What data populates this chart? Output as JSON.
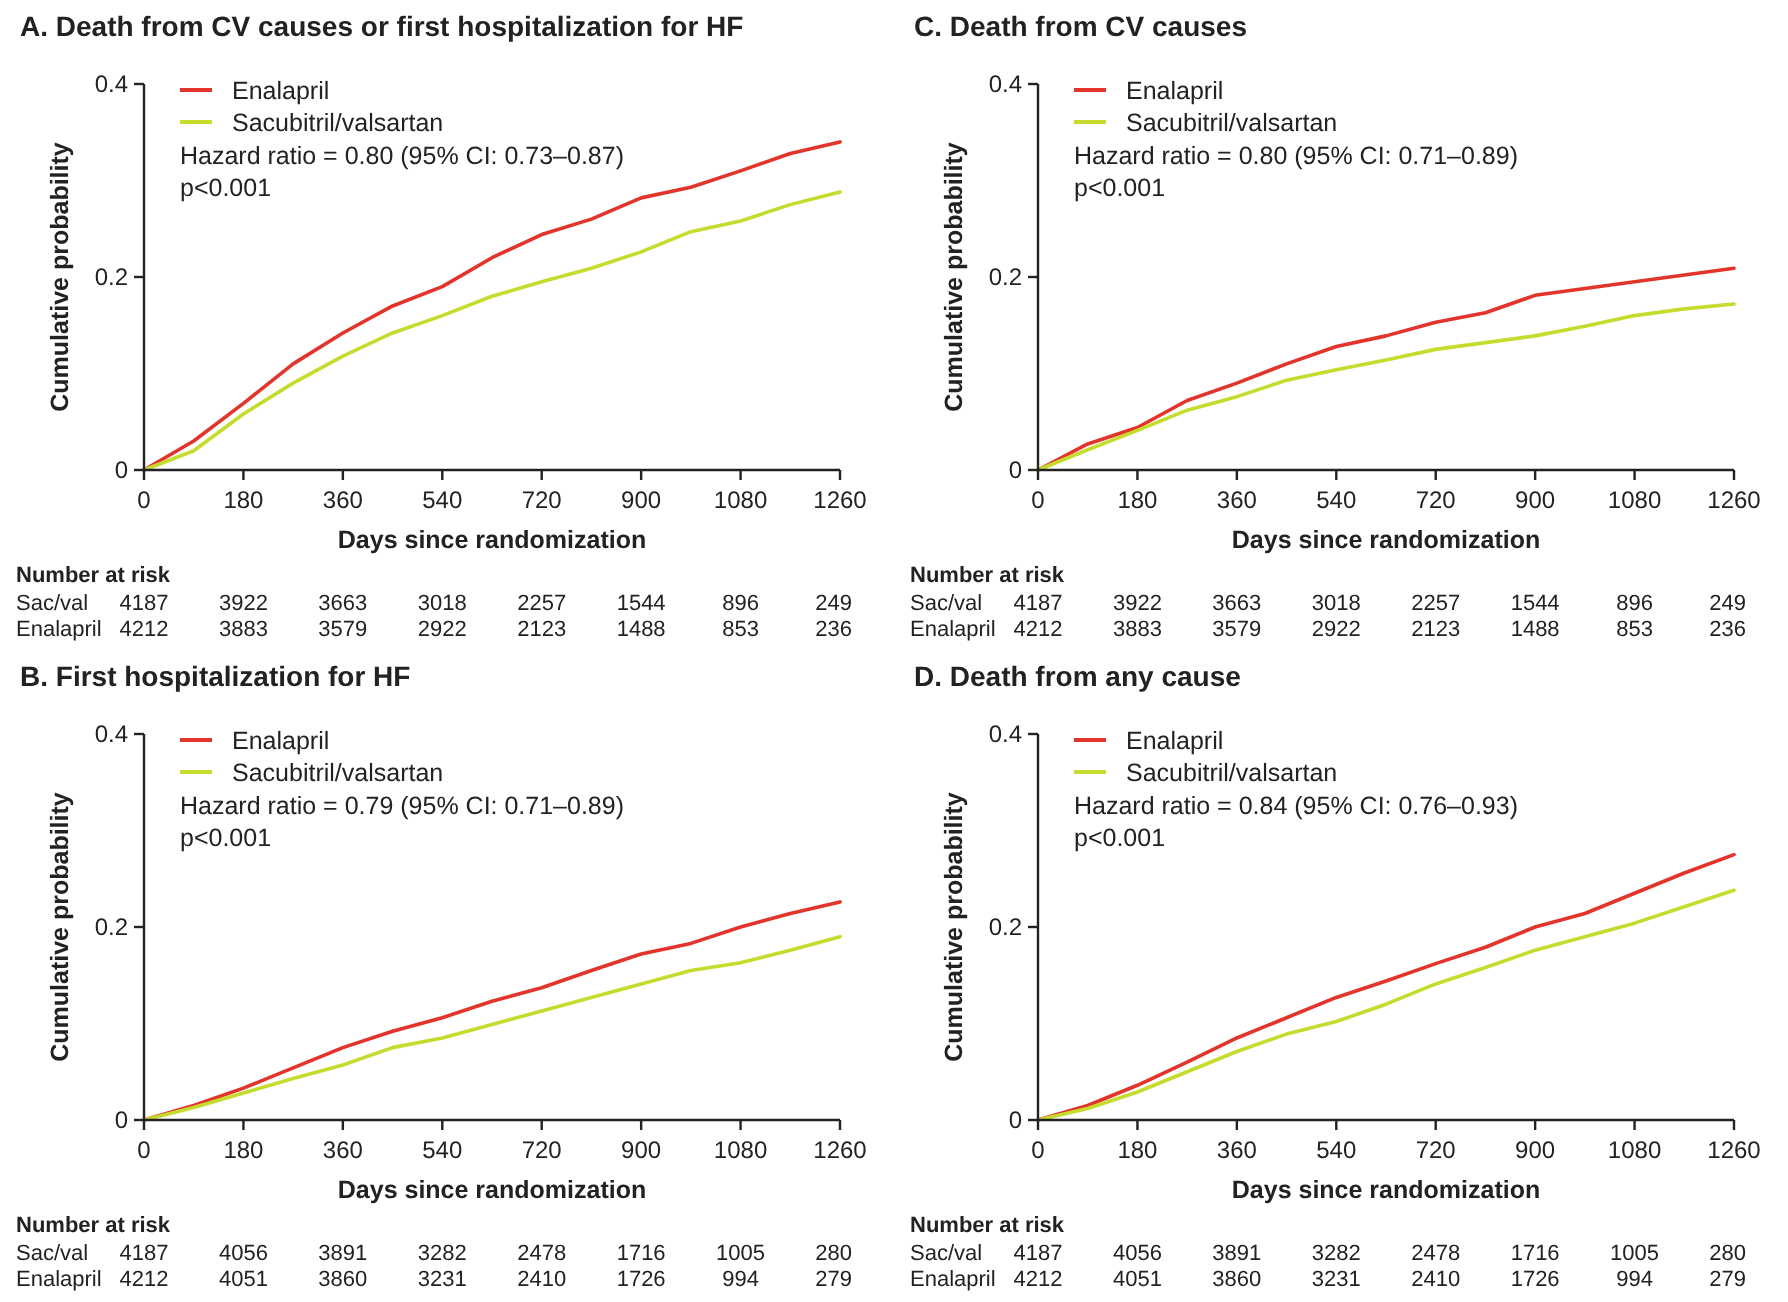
{
  "chart_data": [
    {
      "type": "line",
      "title": "A. Death from CV causes or first hospitalization for HF",
      "xlabel": "Days since randomization",
      "ylabel": "Cumulative probability",
      "legend": "top left",
      "grid": false,
      "marker": "none",
      "line_style": "solid",
      "xlim": [
        0,
        1260
      ],
      "xticks": [
        0,
        180,
        360,
        540,
        720,
        900,
        1080,
        1260
      ],
      "ylim": [
        0,
        0.4
      ],
      "yticks": [
        0,
        0.2,
        0.4
      ],
      "x": [
        0,
        90,
        180,
        270,
        360,
        450,
        540,
        630,
        720,
        810,
        900,
        990,
        1080,
        1170,
        1260
      ],
      "series": [
        {
          "name": "Enalapril",
          "color": "#e3342b",
          "values": [
            0,
            0.03,
            0.069,
            0.11,
            0.142,
            0.17,
            0.19,
            0.22,
            0.244,
            0.26,
            0.282,
            0.293,
            0.31,
            0.328,
            0.34
          ]
        },
        {
          "name": "Sacubitril/valsartan",
          "color": "#c5dc2e",
          "values": [
            0,
            0.02,
            0.058,
            0.09,
            0.118,
            0.142,
            0.16,
            0.18,
            0.195,
            0.209,
            0.226,
            0.247,
            0.258,
            0.275,
            0.288
          ]
        }
      ],
      "annotations": [
        "Hazard ratio = 0.80 (95% CI: 0.73–0.87)",
        "p<0.001",
        "Number at risk",
        "Sac/val",
        "4187",
        "3922",
        "3663",
        "3018",
        "2257",
        "1544",
        "896",
        "249",
        "Enalapril",
        "4212",
        "3883",
        "3579",
        "2922",
        "2123",
        "1488",
        "853",
        "236"
      ]
    },
    {
      "type": "line",
      "title": "C. Death from CV causes",
      "xlabel": "Days since randomization",
      "ylabel": "Cumulative probability",
      "legend": "top left",
      "grid": false,
      "marker": "none",
      "line_style": "solid",
      "xlim": [
        0,
        1260
      ],
      "xticks": [
        0,
        180,
        360,
        540,
        720,
        900,
        1080,
        1260
      ],
      "ylim": [
        0,
        0.4
      ],
      "yticks": [
        0,
        0.2,
        0.4
      ],
      "x": [
        0,
        90,
        180,
        270,
        360,
        450,
        540,
        630,
        720,
        810,
        900,
        990,
        1080,
        1170,
        1260
      ],
      "series": [
        {
          "name": "Enalapril",
          "color": "#e3342b",
          "values": [
            0,
            0.027,
            0.044,
            0.072,
            0.09,
            0.11,
            0.128,
            0.139,
            0.153,
            0.163,
            0.181,
            0.188,
            0.195,
            0.202,
            0.209
          ]
        },
        {
          "name": "Sacubitril/valsartan",
          "color": "#c5dc2e",
          "values": [
            0,
            0.021,
            0.041,
            0.062,
            0.076,
            0.093,
            0.104,
            0.114,
            0.125,
            0.132,
            0.139,
            0.149,
            0.16,
            0.167,
            0.172
          ]
        }
      ],
      "annotations": [
        "Hazard ratio = 0.80 (95% CI: 0.71–0.89)",
        "p<0.001",
        "Number at risk",
        "Sac/val",
        "4187",
        "3922",
        "3663",
        "3018",
        "2257",
        "1544",
        "896",
        "249",
        "Enalapril",
        "4212",
        "3883",
        "3579",
        "2922",
        "2123",
        "1488",
        "853",
        "236"
      ]
    },
    {
      "type": "line",
      "title": "B. First hospitalization for HF",
      "xlabel": "Days since randomization",
      "ylabel": "Cumulative probability",
      "legend": "top left",
      "grid": false,
      "marker": "none",
      "line_style": "solid",
      "xlim": [
        0,
        1260
      ],
      "xticks": [
        0,
        180,
        360,
        540,
        720,
        900,
        1080,
        1260
      ],
      "ylim": [
        0,
        0.4
      ],
      "yticks": [
        0,
        0.2,
        0.4
      ],
      "x": [
        0,
        90,
        180,
        270,
        360,
        450,
        540,
        630,
        720,
        810,
        900,
        990,
        1080,
        1170,
        1260
      ],
      "series": [
        {
          "name": "Enalapril",
          "color": "#e3342b",
          "values": [
            0,
            0.015,
            0.033,
            0.054,
            0.075,
            0.092,
            0.106,
            0.123,
            0.137,
            0.155,
            0.172,
            0.183,
            0.2,
            0.214,
            0.226
          ]
        },
        {
          "name": "Sacubitril/valsartan",
          "color": "#c5dc2e",
          "values": [
            0,
            0.013,
            0.028,
            0.043,
            0.057,
            0.075,
            0.085,
            0.099,
            0.113,
            0.127,
            0.141,
            0.155,
            0.163,
            0.176,
            0.19
          ]
        }
      ],
      "annotations": [
        "Hazard ratio = 0.79 (95% CI: 0.71–0.89)",
        "p<0.001",
        "Number at risk",
        "Sac/val",
        "4187",
        "4056",
        "3891",
        "3282",
        "2478",
        "1716",
        "1005",
        "280",
        "Enalapril",
        "4212",
        "4051",
        "3860",
        "3231",
        "2410",
        "1726",
        "994",
        "279"
      ]
    },
    {
      "type": "line",
      "title": "D. Death from any cause",
      "xlabel": "Days since randomization",
      "ylabel": "Cumulative probability",
      "legend": "top left",
      "grid": false,
      "marker": "none",
      "line_style": "solid",
      "xlim": [
        0,
        1260
      ],
      "xticks": [
        0,
        180,
        360,
        540,
        720,
        900,
        1080,
        1260
      ],
      "ylim": [
        0,
        0.4
      ],
      "yticks": [
        0,
        0.2,
        0.4
      ],
      "x": [
        0,
        90,
        180,
        270,
        360,
        450,
        540,
        630,
        720,
        810,
        900,
        990,
        1080,
        1170,
        1260
      ],
      "series": [
        {
          "name": "Enalapril",
          "color": "#e3342b",
          "values": [
            0,
            0.015,
            0.036,
            0.06,
            0.085,
            0.106,
            0.127,
            0.144,
            0.162,
            0.179,
            0.2,
            0.214,
            0.235,
            0.256,
            0.275
          ]
        },
        {
          "name": "Sacubitril/valsartan",
          "color": "#c5dc2e",
          "values": [
            0,
            0.012,
            0.029,
            0.05,
            0.071,
            0.089,
            0.102,
            0.12,
            0.141,
            0.158,
            0.176,
            0.19,
            0.204,
            0.221,
            0.238
          ]
        }
      ],
      "annotations": [
        "Hazard ratio = 0.84 (95% CI: 0.76–0.93)",
        "p<0.001",
        "Number at risk",
        "Sac/val",
        "4187",
        "4056",
        "3891",
        "3282",
        "2478",
        "1716",
        "1005",
        "280",
        "Enalapril",
        "4212",
        "4051",
        "3860",
        "3231",
        "2410",
        "1726",
        "994",
        "279"
      ]
    }
  ]
}
